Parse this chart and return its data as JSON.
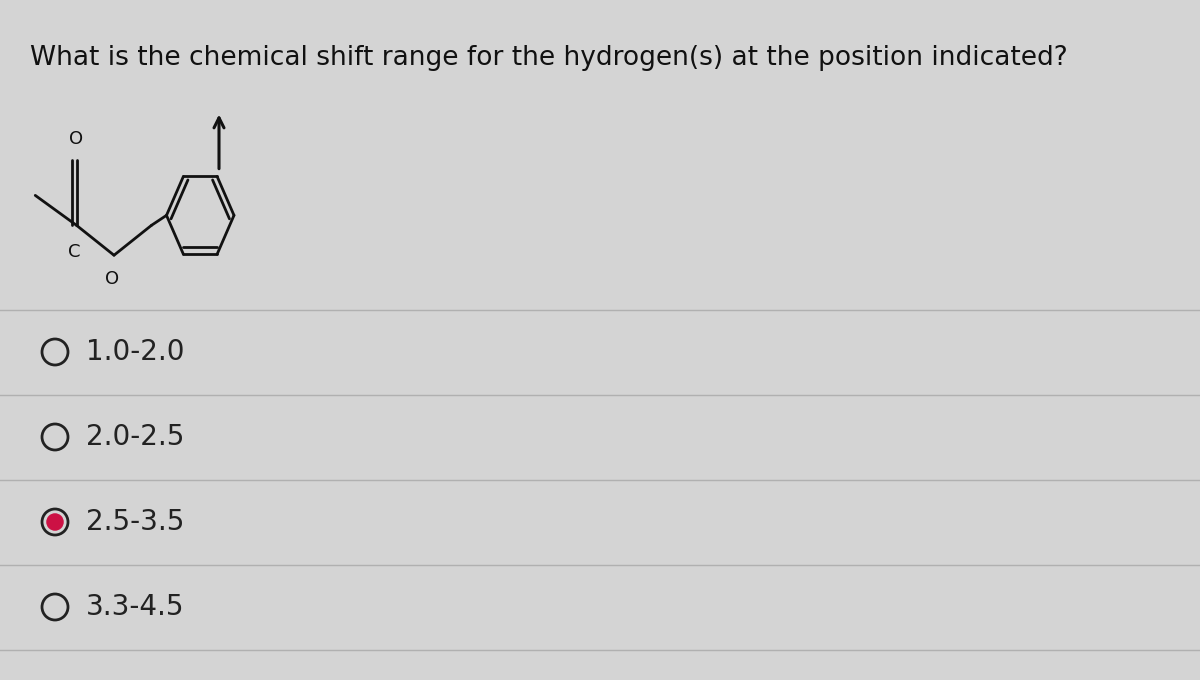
{
  "question": "What is the chemical shift range for the hydrogen(s) at the position indicated?",
  "options": [
    "1.0-2.0",
    "2.0-2.5",
    "2.5-3.5",
    "3.3-4.5"
  ],
  "correct_index": 2,
  "bg_color": "#d4d4d4",
  "question_color": "#111111",
  "option_color": "#222222",
  "option_fontsize": 20,
  "question_fontsize": 19,
  "line_color": "#b0b0b0",
  "selected_fill": "#cc1144",
  "structure_color": "#111111"
}
